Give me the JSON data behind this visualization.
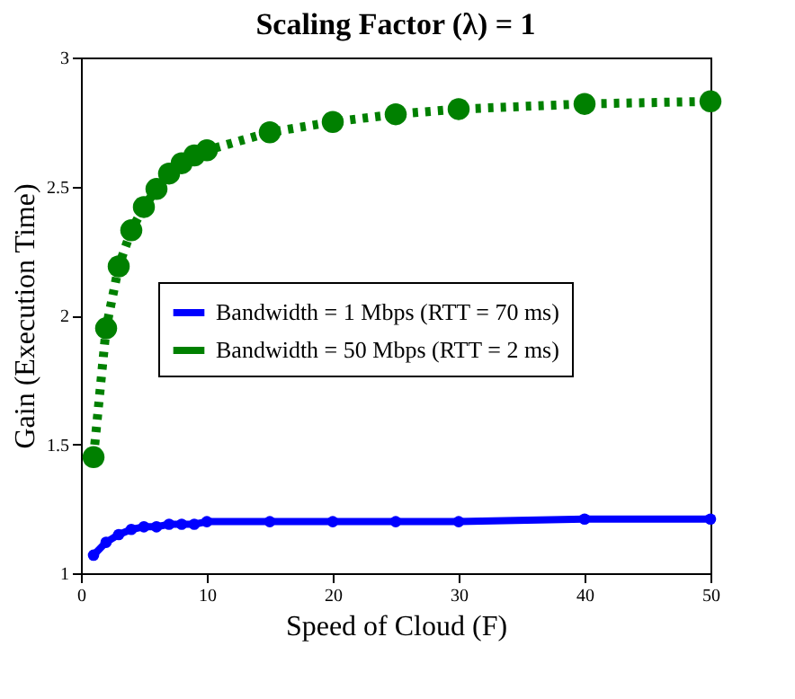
{
  "chart_data": {
    "type": "line",
    "title": "Scaling Factor (λ) = 1",
    "xlabel": "Speed of Cloud (F)",
    "ylabel": "Gain (Execution Time)",
    "x": [
      1,
      2,
      3,
      4,
      5,
      6,
      7,
      8,
      9,
      10,
      15,
      20,
      25,
      30,
      40,
      50
    ],
    "series": [
      {
        "name": "Bandwidth = 1 Mbps (RTT = 70 ms)",
        "color": "#0000ff",
        "marker": "circle",
        "line_style": "solid",
        "values": [
          1.07,
          1.12,
          1.15,
          1.17,
          1.18,
          1.18,
          1.19,
          1.19,
          1.19,
          1.2,
          1.2,
          1.2,
          1.2,
          1.2,
          1.21,
          1.21
        ]
      },
      {
        "name": "Bandwidth = 50 Mbps (RTT = 2 ms)",
        "color": "#008000",
        "marker": "circle",
        "line_style": "dotted",
        "values": [
          1.45,
          1.95,
          2.19,
          2.33,
          2.42,
          2.49,
          2.55,
          2.59,
          2.62,
          2.64,
          2.71,
          2.75,
          2.78,
          2.8,
          2.82,
          2.83
        ]
      }
    ],
    "xlim": [
      0,
      50
    ],
    "xticks": [
      0,
      10,
      20,
      30,
      40,
      50
    ],
    "ylim": [
      1,
      3
    ],
    "yticks": [
      1,
      1.5,
      2,
      2.5,
      3
    ],
    "legend": "right"
  }
}
